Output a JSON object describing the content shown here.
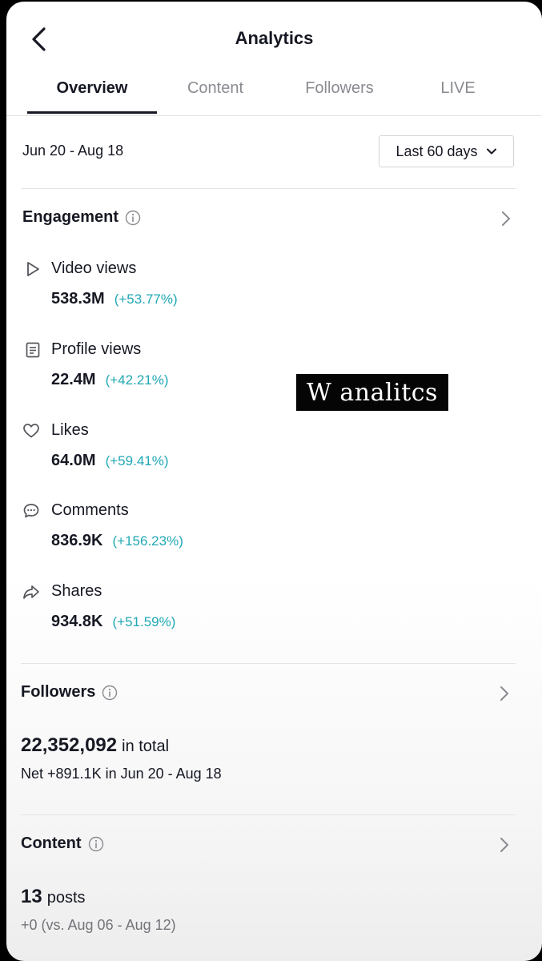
{
  "header": {
    "title": "Analytics"
  },
  "tabs": [
    {
      "label": "Overview",
      "active": true
    },
    {
      "label": "Content",
      "active": false
    },
    {
      "label": "Followers",
      "active": false
    },
    {
      "label": "LIVE",
      "active": false
    }
  ],
  "date_range": "Jun 20 - Aug 18",
  "range_select": {
    "value": "Last 60 days"
  },
  "engagement": {
    "title": "Engagement",
    "metrics": [
      {
        "label": "Video views",
        "value": "538.3M",
        "change": "(+53.77%)",
        "icon": "play-icon"
      },
      {
        "label": "Profile views",
        "value": "22.4M",
        "change": "(+42.21%)",
        "icon": "profile-doc-icon"
      },
      {
        "label": "Likes",
        "value": "64.0M",
        "change": "(+59.41%)",
        "icon": "heart-icon"
      },
      {
        "label": "Comments",
        "value": "836.9K",
        "change": "(+156.23%)",
        "icon": "comment-icon"
      },
      {
        "label": "Shares",
        "value": "934.8K",
        "change": "(+51.59%)",
        "icon": "share-icon"
      }
    ]
  },
  "followers": {
    "title": "Followers",
    "total": "22,352,092",
    "total_unit": "in total",
    "net": "Net +891.1K in Jun 20 - Aug 18"
  },
  "content": {
    "title": "Content",
    "posts": "13",
    "posts_unit": "posts",
    "comparison": "+0 (vs. Aug 06 - Aug 12)"
  },
  "watermark": "W analitcs",
  "colors": {
    "positive_change": "#20a8b4",
    "text_primary": "#161823",
    "text_muted": "#8a8b91"
  }
}
